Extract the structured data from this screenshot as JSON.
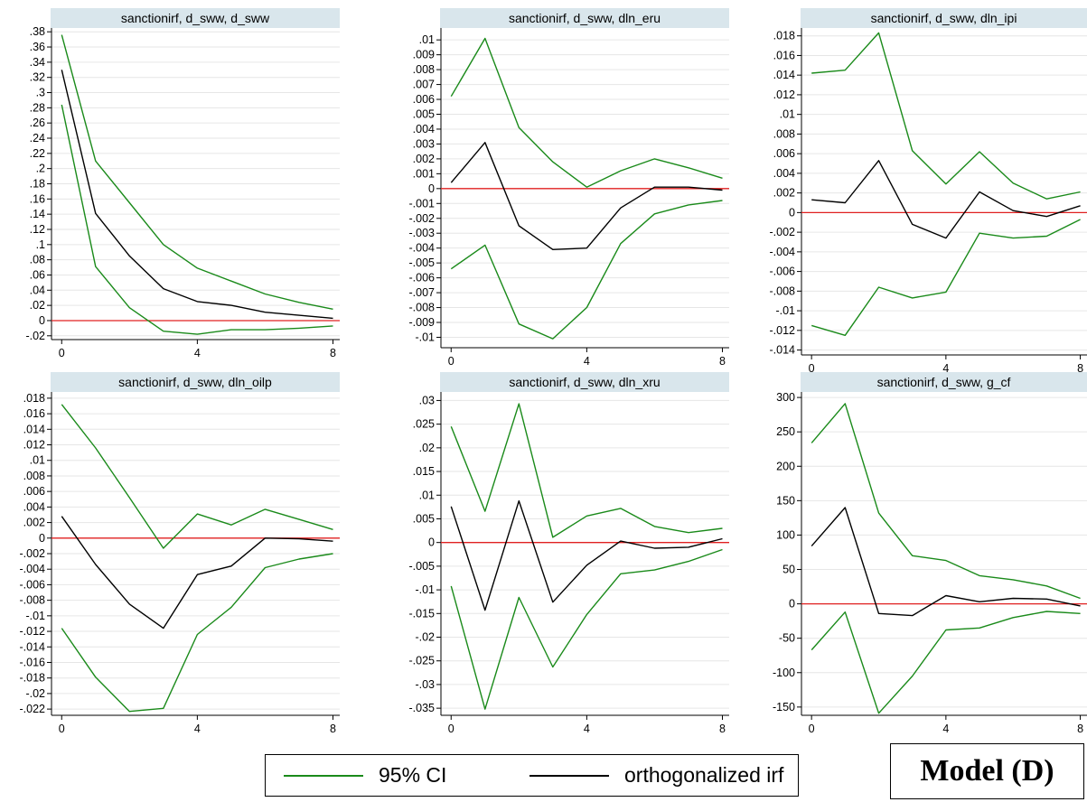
{
  "colors": {
    "ci": "#1a8a1a",
    "irf": "#000000",
    "zero": "#e02020",
    "title_bg": "#d9e6ec",
    "grid": "#e6e6e6"
  },
  "legend": {
    "ci_label": "95% CI",
    "irf_label": "orthogonalized irf"
  },
  "model_label": "Model (D)",
  "chart_data": [
    {
      "type": "line",
      "title": "sanctionirf, d_sww, d_sww",
      "x": [
        0,
        1,
        2,
        3,
        4,
        5,
        6,
        7,
        8
      ],
      "ylim": [
        -0.025,
        0.385
      ],
      "xticks": [
        0,
        4,
        8
      ],
      "yticks": [
        -0.02,
        0,
        0.02,
        0.04,
        0.06,
        0.08,
        0.1,
        0.12,
        0.14,
        0.16,
        0.18,
        0.2,
        0.22,
        0.24,
        0.26,
        0.28,
        0.3,
        0.32,
        0.34,
        0.36,
        0.38
      ],
      "ytick_labels": [
        "-.02",
        "0",
        ".02",
        ".04",
        ".06",
        ".08",
        ".1",
        ".12",
        ".14",
        ".16",
        ".18",
        ".2",
        ".22",
        ".24",
        ".26",
        ".28",
        ".3",
        ".32",
        ".34",
        ".36",
        ".38"
      ],
      "series": [
        {
          "role": "ci_upper",
          "values": [
            0.376,
            0.21,
            0.155,
            0.1,
            0.069,
            0.052,
            0.035,
            0.024,
            0.015
          ]
        },
        {
          "role": "irf",
          "values": [
            0.33,
            0.141,
            0.085,
            0.042,
            0.025,
            0.02,
            0.011,
            0.007,
            0.003
          ]
        },
        {
          "role": "ci_lower",
          "values": [
            0.284,
            0.071,
            0.017,
            -0.014,
            -0.018,
            -0.012,
            -0.012,
            -0.01,
            -0.007
          ]
        }
      ]
    },
    {
      "type": "line",
      "title": "sanctionirf, d_sww, dln_eru",
      "x": [
        0,
        1,
        2,
        3,
        4,
        5,
        6,
        7,
        8
      ],
      "ylim": [
        -0.0107,
        0.0108
      ],
      "xticks": [
        0,
        4,
        8
      ],
      "yticks": [
        -0.01,
        -0.009,
        -0.008,
        -0.007,
        -0.006,
        -0.005,
        -0.004,
        -0.003,
        -0.002,
        -0.001,
        0,
        0.001,
        0.002,
        0.003,
        0.004,
        0.005,
        0.006,
        0.007,
        0.008,
        0.009,
        0.01
      ],
      "ytick_labels": [
        "-.01",
        "-.009",
        "-.008",
        "-.007",
        "-.006",
        "-.005",
        "-.004",
        "-.003",
        "-.002",
        "-.001",
        "0",
        ".001",
        ".002",
        ".003",
        ".004",
        ".005",
        ".006",
        ".007",
        ".008",
        ".009",
        ".01"
      ],
      "series": [
        {
          "role": "ci_upper",
          "values": [
            0.0062,
            0.0101,
            0.0041,
            0.0018,
            0.0001,
            0.0012,
            0.002,
            0.0014,
            0.0007
          ]
        },
        {
          "role": "irf",
          "values": [
            0.0004,
            0.0031,
            -0.0025,
            -0.0041,
            -0.004,
            -0.0013,
            0.0001,
            0.0001,
            -0.0001
          ]
        },
        {
          "role": "ci_lower",
          "values": [
            -0.0054,
            -0.0038,
            -0.0091,
            -0.0101,
            -0.008,
            -0.0037,
            -0.0017,
            -0.0011,
            -0.0008
          ]
        }
      ]
    },
    {
      "type": "line",
      "title": "sanctionirf, d_sww, dln_ipi",
      "x": [
        0,
        1,
        2,
        3,
        4,
        5,
        6,
        7,
        8
      ],
      "ylim": [
        -0.0145,
        0.0188
      ],
      "xticks": [
        0,
        4,
        8
      ],
      "yticks": [
        -0.014,
        -0.012,
        -0.01,
        -0.008,
        -0.006,
        -0.004,
        -0.002,
        0,
        0.002,
        0.004,
        0.006,
        0.008,
        0.01,
        0.012,
        0.014,
        0.016,
        0.018
      ],
      "ytick_labels": [
        "-.014",
        "-.012",
        "-.01",
        "-.008",
        "-.006",
        "-.004",
        "-.002",
        "0",
        ".002",
        ".004",
        ".006",
        ".008",
        ".01",
        ".012",
        ".014",
        ".016",
        ".018"
      ],
      "series": [
        {
          "role": "ci_upper",
          "values": [
            0.0142,
            0.0145,
            0.0183,
            0.0063,
            0.0029,
            0.0062,
            0.003,
            0.0014,
            0.0021
          ]
        },
        {
          "role": "irf",
          "values": [
            0.0013,
            0.001,
            0.0053,
            -0.0012,
            -0.0026,
            0.0021,
            0.0002,
            -0.0004,
            0.0007
          ]
        },
        {
          "role": "ci_lower",
          "values": [
            -0.0115,
            -0.0125,
            -0.0076,
            -0.0087,
            -0.0081,
            -0.0021,
            -0.0026,
            -0.0024,
            -0.0007
          ]
        }
      ]
    },
    {
      "type": "line",
      "title": "sanctionirf, d_sww, dln_oilp",
      "x": [
        0,
        1,
        2,
        3,
        4,
        5,
        6,
        7,
        8
      ],
      "ylim": [
        -0.0228,
        0.0188
      ],
      "xticks": [
        0,
        4,
        8
      ],
      "yticks": [
        -0.022,
        -0.02,
        -0.018,
        -0.016,
        -0.014,
        -0.012,
        -0.01,
        -0.008,
        -0.006,
        -0.004,
        -0.002,
        0,
        0.002,
        0.004,
        0.006,
        0.008,
        0.01,
        0.012,
        0.014,
        0.016,
        0.018
      ],
      "ytick_labels": [
        "-.022",
        "-.02",
        "-.018",
        "-.016",
        "-.014",
        "-.012",
        "-.01",
        "-.008",
        "-.006",
        "-.004",
        "-.002",
        "0",
        ".002",
        ".004",
        ".006",
        ".008",
        ".01",
        ".012",
        ".014",
        ".016",
        ".018"
      ],
      "series": [
        {
          "role": "ci_upper",
          "values": [
            0.0172,
            0.0116,
            0.0052,
            -0.0013,
            0.0031,
            0.0017,
            0.0037,
            0.0024,
            0.0011
          ]
        },
        {
          "role": "irf",
          "values": [
            0.0028,
            -0.0034,
            -0.0085,
            -0.0116,
            -0.0047,
            -0.0036,
            0.0,
            -0.0001,
            -0.0004
          ]
        },
        {
          "role": "ci_lower",
          "values": [
            -0.0116,
            -0.0179,
            -0.0223,
            -0.0219,
            -0.0124,
            -0.0089,
            -0.0038,
            -0.0027,
            -0.002
          ]
        }
      ]
    },
    {
      "type": "line",
      "title": "sanctionirf, d_sww, dln_xru",
      "x": [
        0,
        1,
        2,
        3,
        4,
        5,
        6,
        7,
        8
      ],
      "ylim": [
        -0.0365,
        0.0318
      ],
      "xticks": [
        0,
        4,
        8
      ],
      "yticks": [
        -0.035,
        -0.03,
        -0.025,
        -0.02,
        -0.015,
        -0.01,
        -0.005,
        0,
        0.005,
        0.01,
        0.015,
        0.02,
        0.025,
        0.03
      ],
      "ytick_labels": [
        "-.035",
        "-.03",
        "-.025",
        "-.02",
        "-.015",
        "-.01",
        "-.005",
        "0",
        ".005",
        ".01",
        ".015",
        ".02",
        ".025",
        ".03"
      ],
      "series": [
        {
          "role": "ci_upper",
          "values": [
            0.0245,
            0.0066,
            0.0293,
            0.0011,
            0.0056,
            0.0072,
            0.0034,
            0.0021,
            0.003
          ]
        },
        {
          "role": "irf",
          "values": [
            0.0076,
            -0.0143,
            0.0088,
            -0.0126,
            -0.0048,
            0.0003,
            -0.0012,
            -0.001,
            0.0008
          ]
        },
        {
          "role": "ci_lower",
          "values": [
            -0.0092,
            -0.0352,
            -0.0116,
            -0.0263,
            -0.0152,
            -0.0066,
            -0.0058,
            -0.004,
            -0.0015
          ]
        }
      ]
    },
    {
      "type": "line",
      "title": "sanctionirf, d_sww, g_cf",
      "x": [
        0,
        1,
        2,
        3,
        4,
        5,
        6,
        7,
        8
      ],
      "ylim": [
        -162,
        308
      ],
      "xticks": [
        0,
        4,
        8
      ],
      "yticks": [
        -150,
        -100,
        -50,
        0,
        50,
        100,
        150,
        200,
        250,
        300
      ],
      "ytick_labels": [
        "-150",
        "-100",
        "-50",
        "0",
        "50",
        "100",
        "150",
        "200",
        "250",
        "300"
      ],
      "series": [
        {
          "role": "ci_upper",
          "values": [
            234,
            291,
            132,
            70,
            63,
            41,
            35,
            26,
            8
          ]
        },
        {
          "role": "irf",
          "values": [
            84,
            140,
            -14,
            -17,
            12,
            3,
            8,
            7,
            -3
          ]
        },
        {
          "role": "ci_lower",
          "values": [
            -67,
            -12,
            -159,
            -105,
            -38,
            -35,
            -20,
            -11,
            -14
          ]
        }
      ]
    }
  ]
}
